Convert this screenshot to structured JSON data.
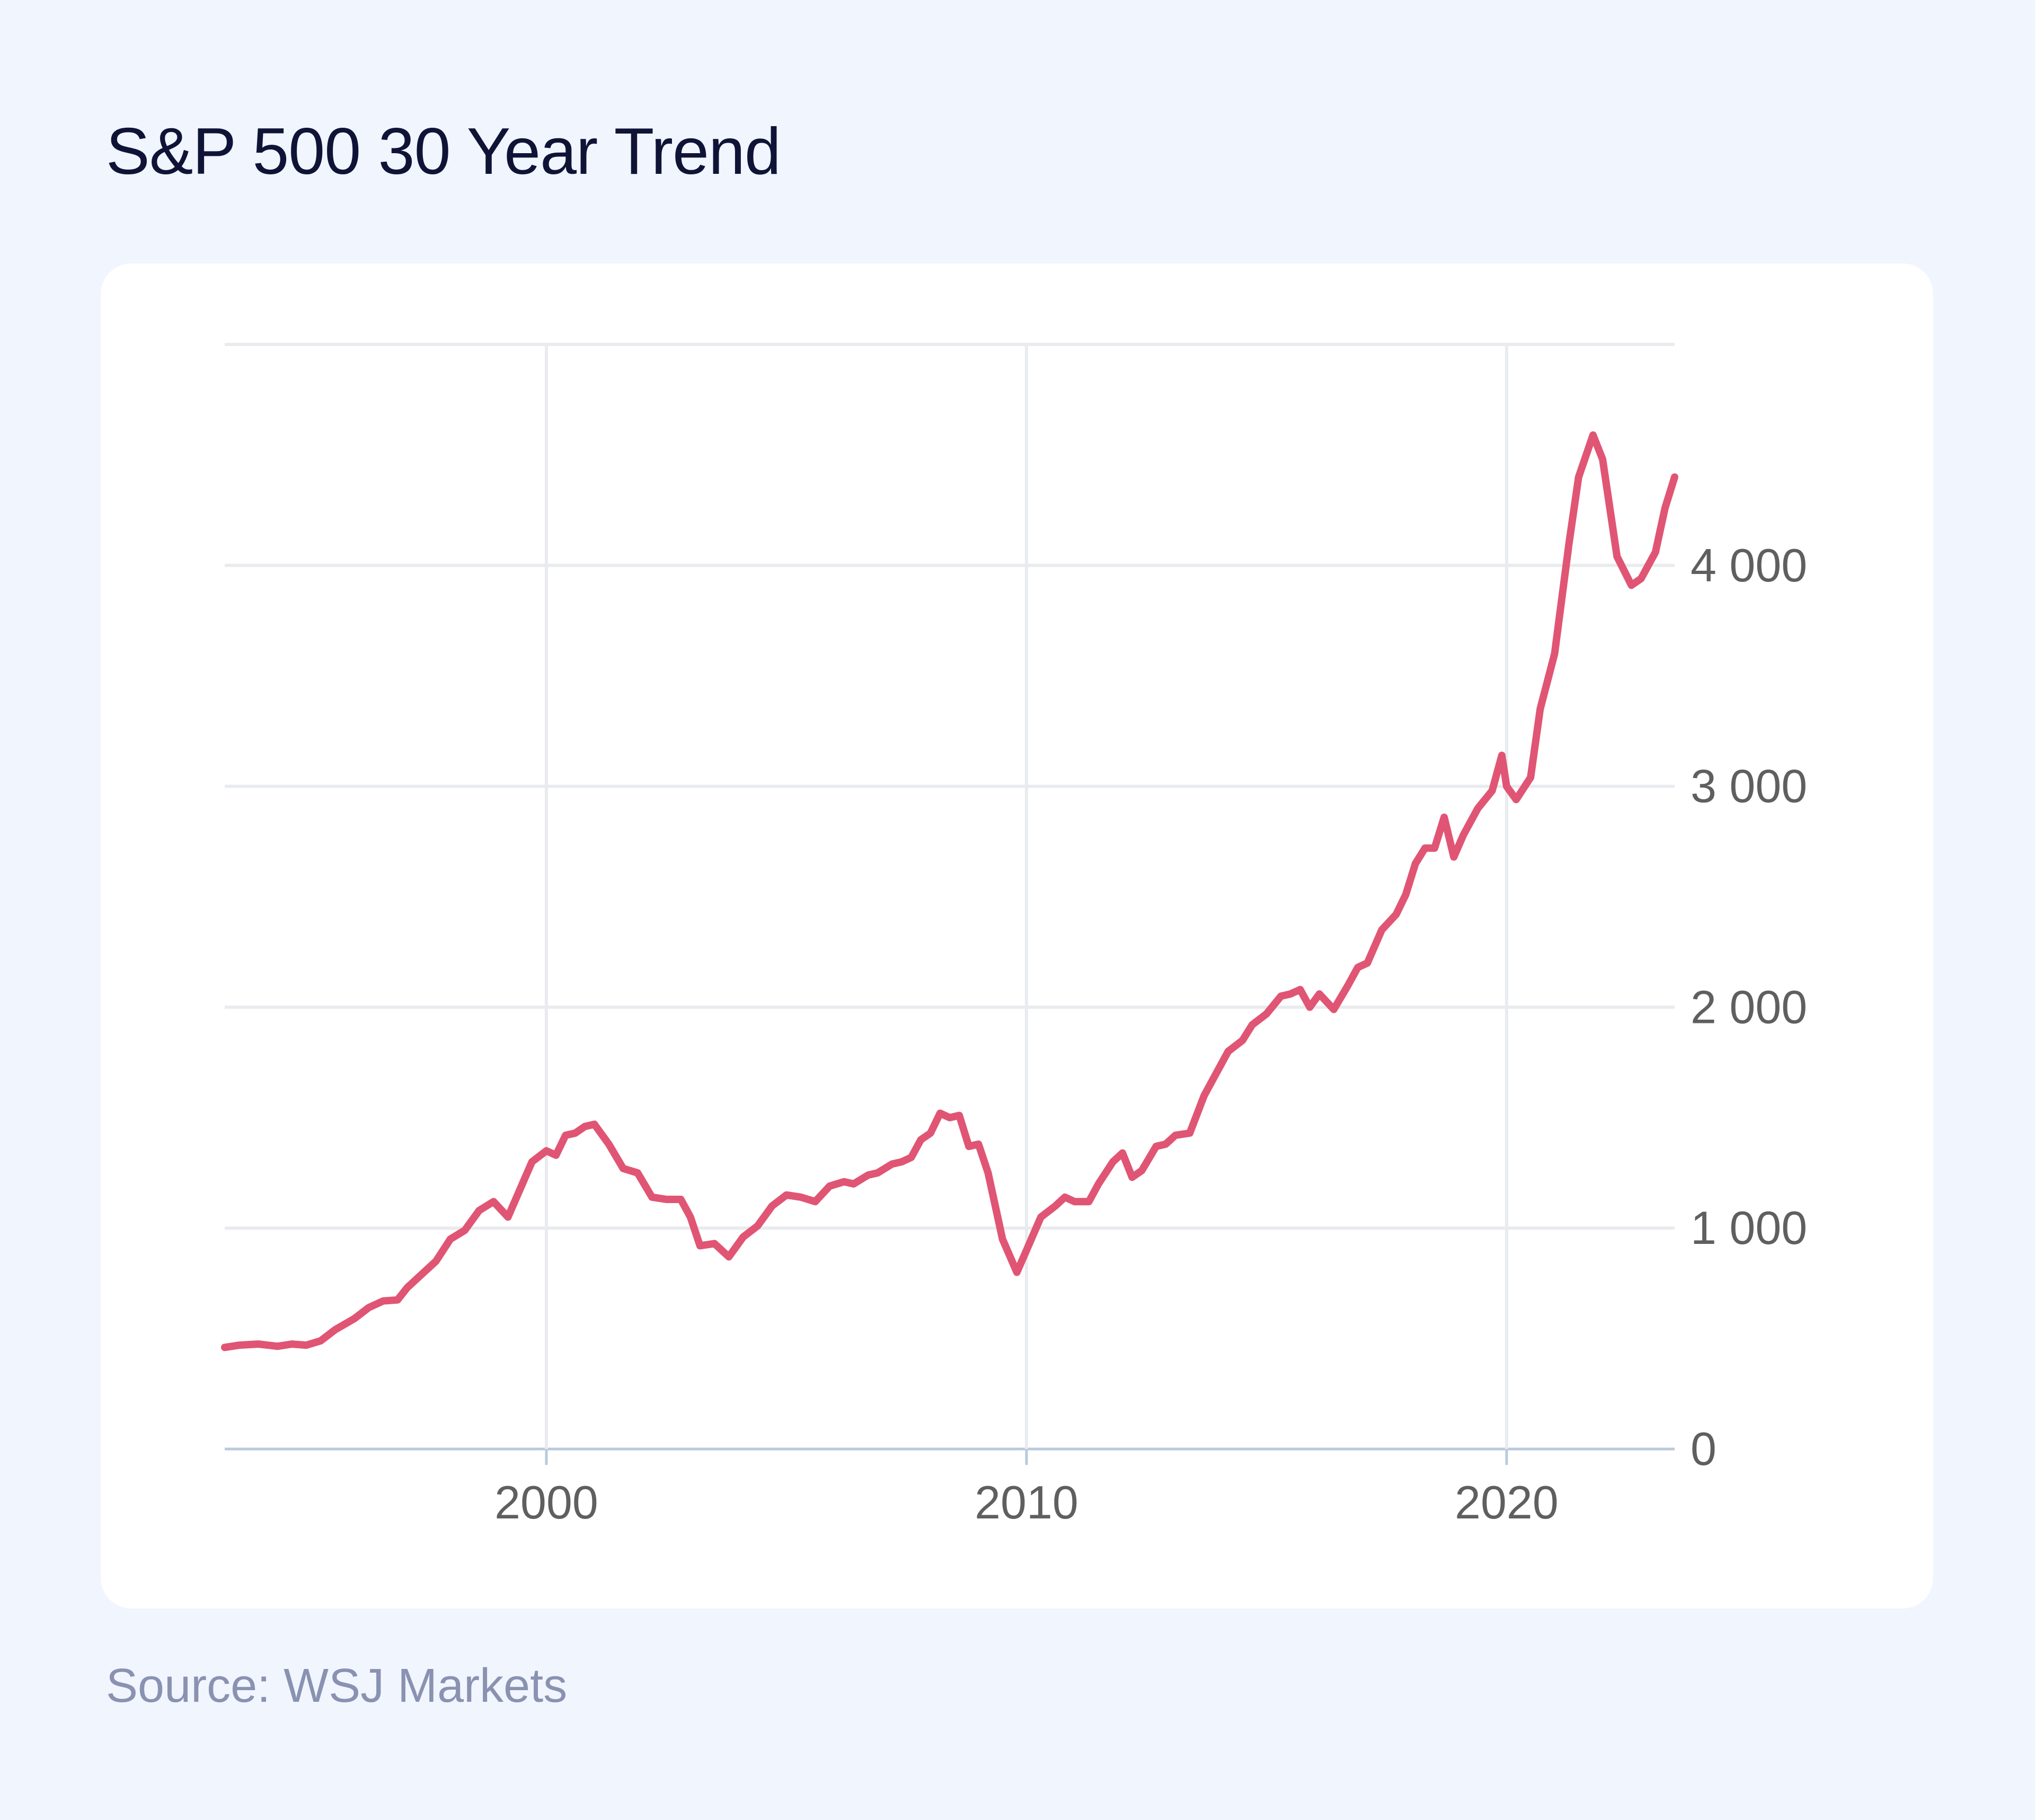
{
  "page": {
    "title": "S&P 500 30 Year Trend",
    "source": "Source: WSJ Markets"
  },
  "colors": {
    "background": "#f1f5fd",
    "card": "#ffffff",
    "line": "#e05574",
    "grid": "#e9ebee",
    "baseline": "#b9cadb",
    "title": "#0f1437",
    "source": "#8a92b2",
    "tick_label": "#5f5f5f"
  },
  "chart_data": {
    "type": "line",
    "title": "S&P 500 30 Year Trend",
    "xlabel": "",
    "ylabel": "",
    "xlim": [
      1993.3,
      2023.5
    ],
    "ylim": [
      0,
      5000
    ],
    "x_ticks": [
      2000,
      2010,
      2020
    ],
    "x_tick_labels": [
      "2000",
      "2010",
      "2020"
    ],
    "y_ticks": [
      0,
      1000,
      2000,
      3000,
      4000
    ],
    "y_tick_labels": [
      "0",
      "1 000",
      "2 000",
      "3 000",
      "4 000"
    ],
    "y_axis_position": "right",
    "grid": true,
    "legend": "none",
    "series": [
      {
        "x": [
          1993.3,
          1993.6,
          1994.0,
          1994.4,
          1994.7,
          1995.0,
          1995.3,
          1995.6,
          1996.0,
          1996.3,
          1996.6,
          1996.9,
          1997.1,
          1997.4,
          1997.7,
          1998.0,
          1998.3,
          1998.6,
          1998.9,
          1999.2,
          1999.5,
          1999.7,
          2000.0,
          2000.2,
          2000.4,
          2000.6,
          2000.8,
          2001.0,
          2001.3,
          2001.6,
          2001.9,
          2002.2,
          2002.5,
          2002.8,
          2003.0,
          2003.2,
          2003.5,
          2003.8,
          2004.1,
          2004.4,
          2004.7,
          2005.0,
          2005.3,
          2005.6,
          2005.9,
          2006.2,
          2006.4,
          2006.7,
          2006.9,
          2007.2,
          2007.4,
          2007.6,
          2007.8,
          2008.0,
          2008.2,
          2008.4,
          2008.6,
          2008.8,
          2009.0,
          2009.2,
          2009.5,
          2009.8,
          2010.0,
          2010.3,
          2010.6,
          2010.8,
          2011.0,
          2011.3,
          2011.5,
          2011.8,
          2012.0,
          2012.2,
          2012.4,
          2012.7,
          2012.9,
          2013.1,
          2013.4,
          2013.7,
          2013.9,
          2014.2,
          2014.5,
          2014.7,
          2015.0,
          2015.3,
          2015.5,
          2015.7,
          2015.9,
          2016.1,
          2016.4,
          2016.7,
          2016.9,
          2017.1,
          2017.4,
          2017.7,
          2017.9,
          2018.1,
          2018.3,
          2018.5,
          2018.7,
          2018.9,
          2019.1,
          2019.4,
          2019.7,
          2019.9,
          2020.0,
          2020.2,
          2020.5,
          2020.7,
          2021.0,
          2021.3,
          2021.5,
          2021.8,
          2022.0,
          2022.3,
          2022.6,
          2022.8,
          2023.1,
          2023.3,
          2023.5
        ],
        "values": [
          460,
          470,
          475,
          465,
          475,
          470,
          490,
          540,
          590,
          640,
          670,
          675,
          730,
          790,
          850,
          950,
          990,
          1080,
          1120,
          1050,
          1200,
          1300,
          1350,
          1330,
          1420,
          1430,
          1460,
          1470,
          1380,
          1270,
          1250,
          1140,
          1130,
          1130,
          1050,
          920,
          930,
          870,
          960,
          1010,
          1100,
          1150,
          1140,
          1120,
          1190,
          1210,
          1200,
          1240,
          1250,
          1290,
          1300,
          1320,
          1400,
          1430,
          1520,
          1500,
          1510,
          1370,
          1380,
          1250,
          950,
          800,
          900,
          1050,
          1100,
          1140,
          1120,
          1120,
          1200,
          1300,
          1340,
          1230,
          1260,
          1370,
          1380,
          1420,
          1430,
          1600,
          1680,
          1800,
          1850,
          1920,
          1970,
          2050,
          2060,
          2080,
          2000,
          2060,
          1990,
          2100,
          2180,
          2200,
          2350,
          2420,
          2510,
          2650,
          2720,
          2720,
          2860,
          2680,
          2780,
          2900,
          2980,
          3140,
          3000,
          2940,
          3040,
          3350,
          3600,
          4100,
          4400,
          4590,
          4480,
          4040,
          3910,
          3940,
          4060,
          4260,
          4400
        ]
      }
    ]
  }
}
